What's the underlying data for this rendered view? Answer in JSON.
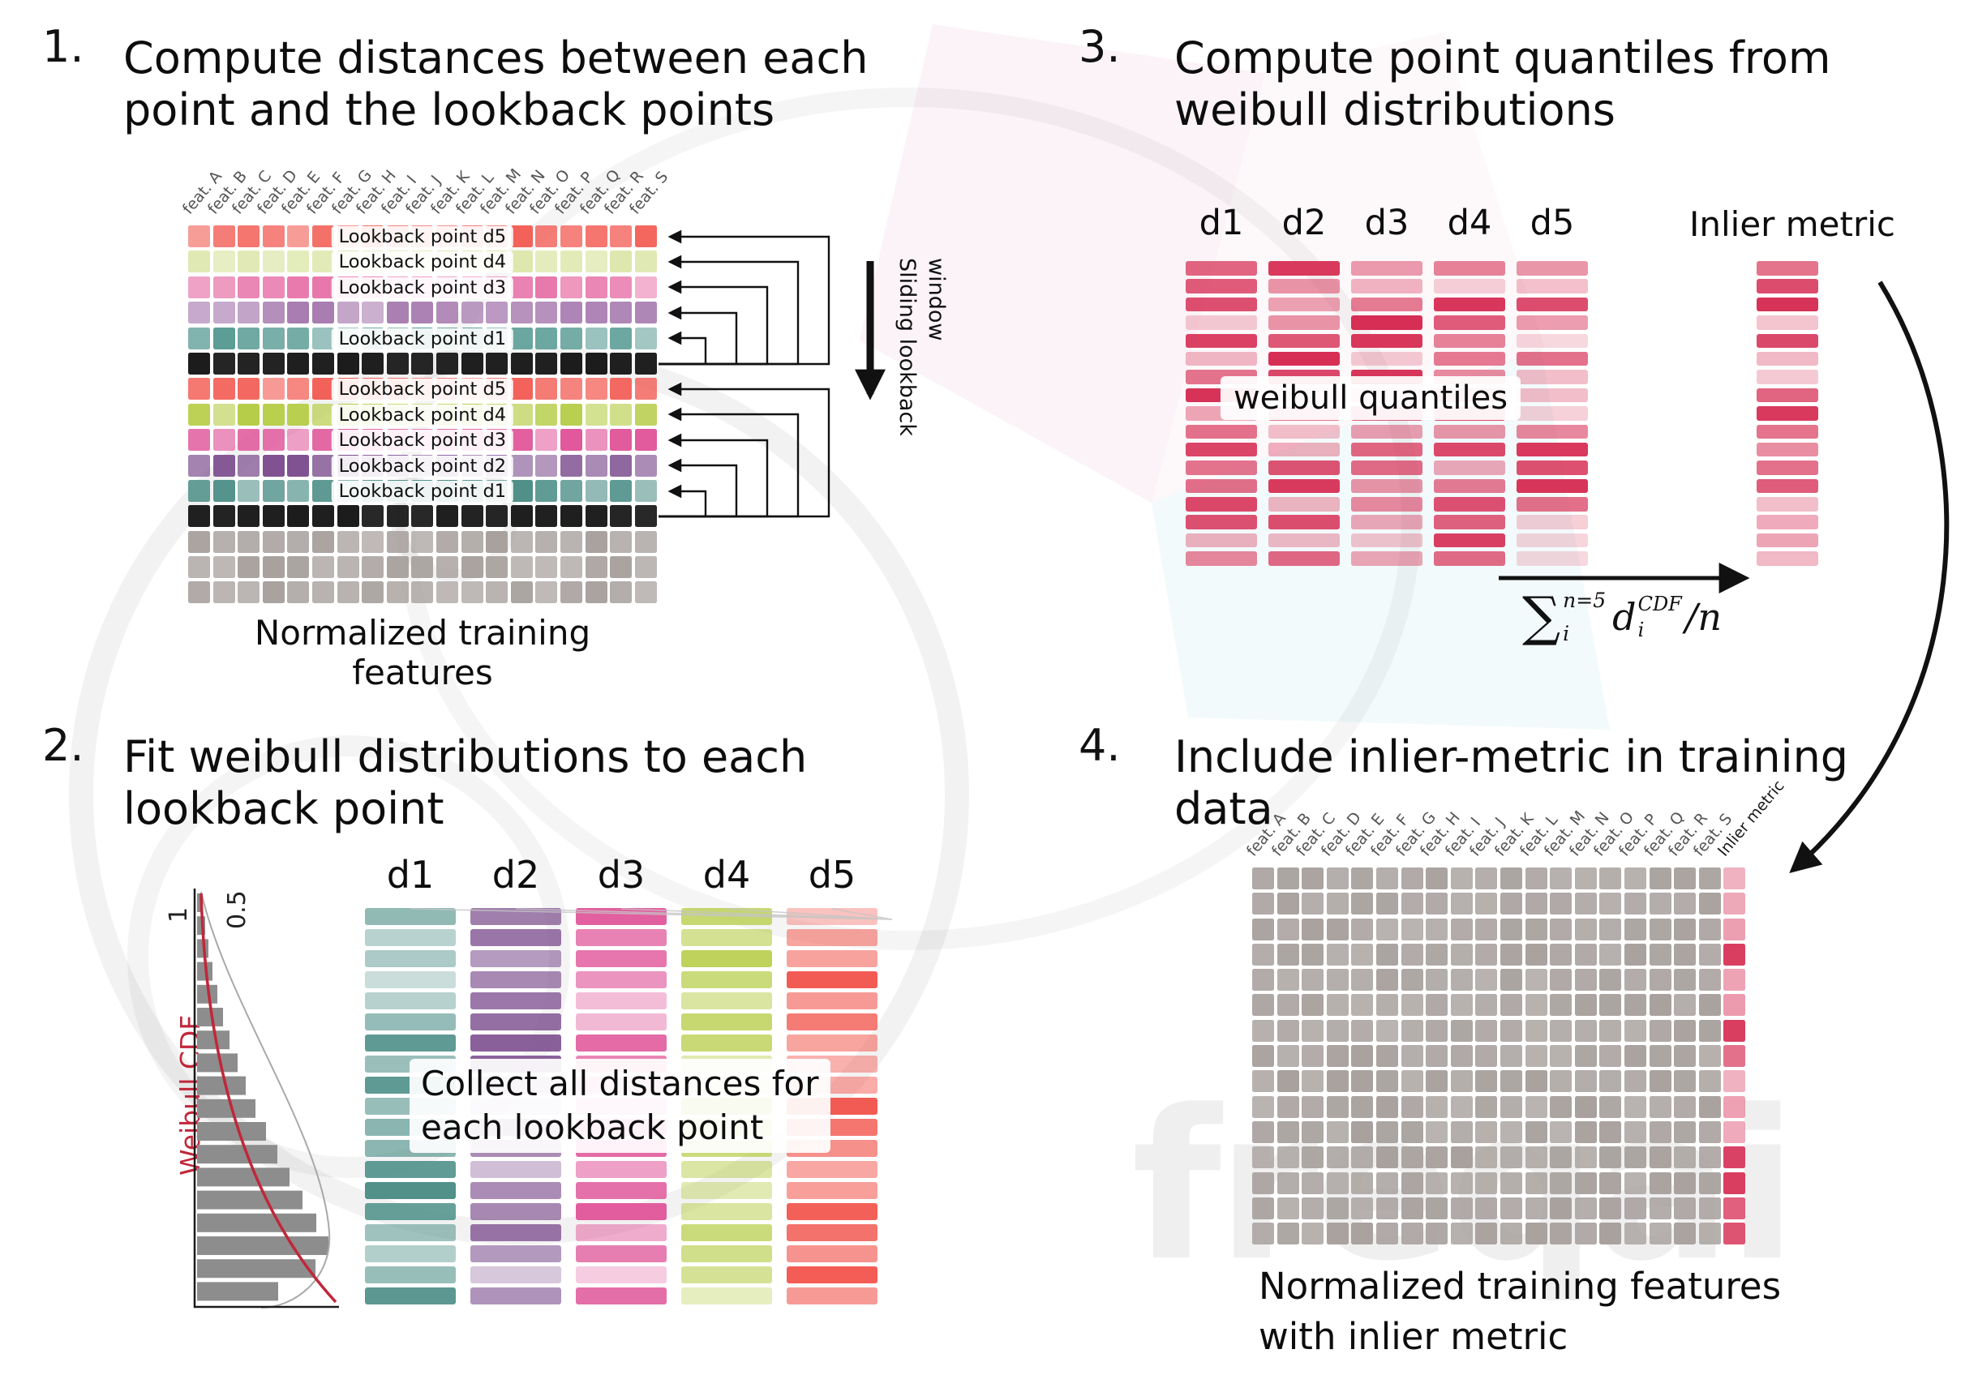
{
  "watermark": "freqai",
  "palette": {
    "black_row": "#1c1c1c",
    "gray_row": "#a8a19e",
    "quantile_red": "#d62e54",
    "weibull_red": "#c0273a",
    "step1_group1": [
      "#f2564e",
      "#dde7ab",
      "#e876ab",
      "#a273ab",
      "#579a93"
    ],
    "step1_group2": [
      "#f2564e",
      "#b5cc45",
      "#e0569a",
      "#7d4f8f",
      "#4e8f88"
    ],
    "step2_cols": [
      "#4e8f88",
      "#7d4f8f",
      "#e0569a",
      "#b5cc45",
      "#f2564e"
    ]
  },
  "step1": {
    "number": "1.",
    "title": [
      "Compute distances between each",
      "point and the lookback points"
    ],
    "features": [
      "feat. A",
      "feat. B",
      "feat. C",
      "feat. D",
      "feat. E",
      "feat. F",
      "feat. G",
      "feat. H",
      "feat. I",
      "feat. J",
      "feat. K",
      "feat. L",
      "feat. M",
      "feat. N",
      "feat. O",
      "feat. P",
      "feat. Q",
      "feat. R",
      "feat. S"
    ],
    "group1_labels": [
      "Lookback point d5",
      "Lookback point d4",
      "Lookback point d3",
      "",
      "Lookback point d1"
    ],
    "group2_labels": [
      "Lookback point d5",
      "Lookback point d4",
      "Lookback point d3",
      "Lookback point d2",
      "Lookback point d1"
    ],
    "sliding_label": "Sliding lookback window",
    "caption": "Normalized training features"
  },
  "step2": {
    "number": "2.",
    "title": [
      "Fit weibull distributions to each",
      "lookback point"
    ],
    "col_headers": [
      "d1",
      "d2",
      "d3",
      "d4",
      "d5"
    ],
    "overlay": [
      "Collect all distances for",
      "each lookback point"
    ],
    "weibull_plot": {
      "tick_1": "1",
      "tick_05": "0.5",
      "axis_label": "Weibull CDF"
    }
  },
  "step3": {
    "number": "3.",
    "title": [
      "Compute point quantiles from",
      "weibull distributions"
    ],
    "col_headers": [
      "d1",
      "d2",
      "d3",
      "d4",
      "d5"
    ],
    "overlay": "weibull quantiles",
    "inlier_header": "Inlier metric",
    "formula": {
      "sum": "∑",
      "sum_sup": "n=5",
      "sum_sub": "i",
      "var": "d",
      "var_sup": "CDF",
      "var_sub": "i",
      "tail": "/n"
    }
  },
  "step4": {
    "number": "4.",
    "title": [
      "Include inlier-metric in training",
      "data"
    ],
    "features": [
      "feat. A",
      "feat. B",
      "feat. C",
      "feat. D",
      "feat. E",
      "feat. F",
      "feat. G",
      "feat. H",
      "feat. I",
      "feat. J",
      "feat. K",
      "feat. L",
      "feat. M",
      "feat. N",
      "feat. O",
      "feat. P",
      "feat. Q",
      "feat. R",
      "feat. S"
    ],
    "inlier_label": "Inlier metric",
    "caption": [
      "Normalized training features",
      "with inlier metric"
    ]
  }
}
